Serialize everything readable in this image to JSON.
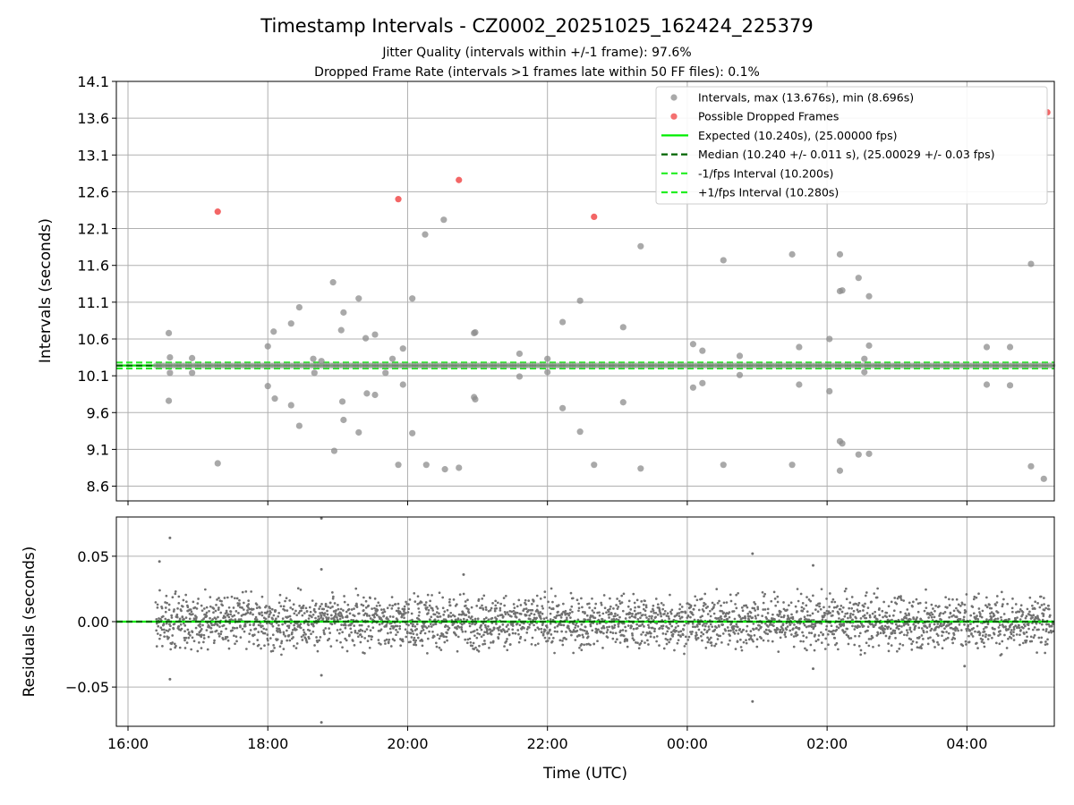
{
  "chart_data": {
    "type": "scatter",
    "title": "Timestamp Intervals - CZ0002_20251025_162424_225379",
    "subtitles": [
      "Jitter Quality (intervals within +/-1 frame): 97.6%",
      "Dropped Frame Rate (intervals >1 frames late within 50 FF files): 0.1%"
    ],
    "xlabel": "Time (UTC)",
    "x_ticks": [
      "16:00",
      "18:00",
      "20:00",
      "22:00",
      "00:00",
      "02:00",
      "04:00"
    ],
    "xlim": [
      "2025-10-25 15:50",
      "2025-10-26 05:15"
    ],
    "colors": {
      "intervals": "#8c8c8c",
      "dropped": "#f04040",
      "expected": "#00ee00",
      "median": "#006400",
      "band": "#22ee22",
      "residuals": "#707070"
    },
    "panels": [
      {
        "id": "intervals",
        "ylabel": "Intervals (seconds)",
        "ylim": [
          8.4,
          14.1
        ],
        "y_ticks": [
          "14.1",
          "13.6",
          "13.1",
          "12.6",
          "12.1",
          "11.6",
          "11.1",
          "10.6",
          "10.1",
          "9.6",
          "9.1",
          "8.6"
        ],
        "legend_position": "top-right",
        "grid": true,
        "series": [
          {
            "name": "Intervals, max (13.676s), min (8.696s)",
            "kind": "scatter",
            "baseline_cluster": {
              "y": 10.24,
              "x_start": "16:24",
              "x_end": "05:14"
            },
            "points": [
              [
                "16:35",
                10.68
              ],
              [
                "16:36",
                10.35
              ],
              [
                "16:36",
                10.14
              ],
              [
                "16:35",
                9.76
              ],
              [
                "16:55",
                10.34
              ],
              [
                "16:55",
                10.14
              ],
              [
                "17:17",
                8.91
              ],
              [
                "18:00",
                10.5
              ],
              [
                "18:00",
                9.96
              ],
              [
                "18:05",
                10.7
              ],
              [
                "18:06",
                9.79
              ],
              [
                "18:20",
                10.81
              ],
              [
                "18:20",
                9.7
              ],
              [
                "18:27",
                11.03
              ],
              [
                "18:27",
                9.42
              ],
              [
                "18:39",
                10.33
              ],
              [
                "18:40",
                10.14
              ],
              [
                "18:46",
                10.3
              ],
              [
                "18:56",
                11.37
              ],
              [
                "18:57",
                9.08
              ],
              [
                "19:03",
                10.72
              ],
              [
                "19:04",
                9.75
              ],
              [
                "19:05",
                9.5
              ],
              [
                "19:05",
                10.96
              ],
              [
                "19:18",
                11.15
              ],
              [
                "19:18",
                9.33
              ],
              [
                "19:24",
                10.61
              ],
              [
                "19:25",
                9.86
              ],
              [
                "19:32",
                10.66
              ],
              [
                "19:32",
                9.84
              ],
              [
                "19:41",
                10.14
              ],
              [
                "19:47",
                10.33
              ],
              [
                "19:52",
                8.89
              ],
              [
                "19:56",
                10.47
              ],
              [
                "19:56",
                9.98
              ],
              [
                "20:04",
                11.15
              ],
              [
                "20:04",
                9.32
              ],
              [
                "20:15",
                12.02
              ],
              [
                "20:16",
                8.89
              ],
              [
                "20:31",
                12.22
              ],
              [
                "20:32",
                8.83
              ],
              [
                "20:44",
                8.85
              ],
              [
                "20:57",
                10.68
              ],
              [
                "20:58",
                10.69
              ],
              [
                "20:57",
                9.81
              ],
              [
                "20:58",
                9.78
              ],
              [
                "21:36",
                10.4
              ],
              [
                "21:36",
                10.09
              ],
              [
                "22:00",
                10.33
              ],
              [
                "22:00",
                10.15
              ],
              [
                "22:13",
                10.83
              ],
              [
                "22:13",
                9.66
              ],
              [
                "22:28",
                11.12
              ],
              [
                "22:28",
                9.34
              ],
              [
                "22:40",
                8.89
              ],
              [
                "23:05",
                10.76
              ],
              [
                "23:05",
                9.74
              ],
              [
                "23:20",
                11.86
              ],
              [
                "23:20",
                8.84
              ],
              [
                "00:05",
                10.53
              ],
              [
                "00:05",
                9.94
              ],
              [
                "00:13",
                10.44
              ],
              [
                "00:13",
                10.0
              ],
              [
                "00:31",
                11.67
              ],
              [
                "00:31",
                8.89
              ],
              [
                "00:45",
                10.37
              ],
              [
                "00:45",
                10.11
              ],
              [
                "01:30",
                11.75
              ],
              [
                "01:30",
                8.89
              ],
              [
                "01:36",
                10.49
              ],
              [
                "01:36",
                9.98
              ],
              [
                "02:02",
                10.6
              ],
              [
                "02:02",
                9.89
              ],
              [
                "02:11",
                11.75
              ],
              [
                "02:11",
                11.25
              ],
              [
                "02:13",
                11.26
              ],
              [
                "02:11",
                9.21
              ],
              [
                "02:13",
                9.18
              ],
              [
                "02:11",
                8.81
              ],
              [
                "02:27",
                11.43
              ],
              [
                "02:27",
                9.03
              ],
              [
                "02:32",
                10.33
              ],
              [
                "02:32",
                10.15
              ],
              [
                "02:36",
                11.18
              ],
              [
                "02:36",
                10.51
              ],
              [
                "02:36",
                9.04
              ],
              [
                "04:17",
                10.49
              ],
              [
                "04:17",
                9.98
              ],
              [
                "04:37",
                10.49
              ],
              [
                "04:37",
                9.97
              ],
              [
                "04:55",
                11.62
              ],
              [
                "04:55",
                8.87
              ],
              [
                "05:06",
                8.7
              ]
            ]
          },
          {
            "name": "Possible Dropped Frames",
            "kind": "scatter",
            "points": [
              [
                "17:17",
                12.33
              ],
              [
                "19:52",
                12.5
              ],
              [
                "20:44",
                12.76
              ],
              [
                "22:40",
                12.26
              ],
              [
                "05:09",
                13.68
              ]
            ]
          },
          {
            "name": "Expected (10.240s), (25.00000 fps)",
            "kind": "hline",
            "y": 10.24,
            "style": "solid"
          },
          {
            "name": "Median (10.240 +/- 0.011 s), (25.00029 +/- 0.03 fps)",
            "kind": "hline",
            "y": 10.24,
            "style": "dashed"
          },
          {
            "name": "-1/fps Interval (10.200s)",
            "kind": "hline",
            "y": 10.2,
            "style": "dashed"
          },
          {
            "name": "+1/fps Interval (10.280s)",
            "kind": "hline",
            "y": 10.28,
            "style": "dashed"
          }
        ]
      },
      {
        "id": "residuals",
        "ylabel": "Residuals (seconds)",
        "ylim": [
          -0.08,
          0.08
        ],
        "y_ticks": [
          "0.05",
          "0.00",
          "−0.05"
        ],
        "y_tick_values": [
          0.05,
          0.0,
          -0.05
        ],
        "grid": true,
        "zero_line": 0.0,
        "residual_distribution": {
          "x_start": "16:24",
          "x_end": "05:14",
          "count": 3100,
          "spread_sd": 0.01,
          "clip": 0.026
        },
        "outliers": [
          [
            "16:27",
            0.046
          ],
          [
            "16:36",
            0.064
          ],
          [
            "16:36",
            -0.044
          ],
          [
            "18:46",
            0.079
          ],
          [
            "18:46",
            0.04
          ],
          [
            "18:46",
            -0.041
          ],
          [
            "18:46",
            -0.077
          ],
          [
            "20:48",
            0.036
          ],
          [
            "00:56",
            0.052
          ],
          [
            "00:56",
            -0.061
          ],
          [
            "01:48",
            0.043
          ],
          [
            "01:48",
            -0.036
          ],
          [
            "03:58",
            -0.034
          ]
        ]
      }
    ]
  }
}
